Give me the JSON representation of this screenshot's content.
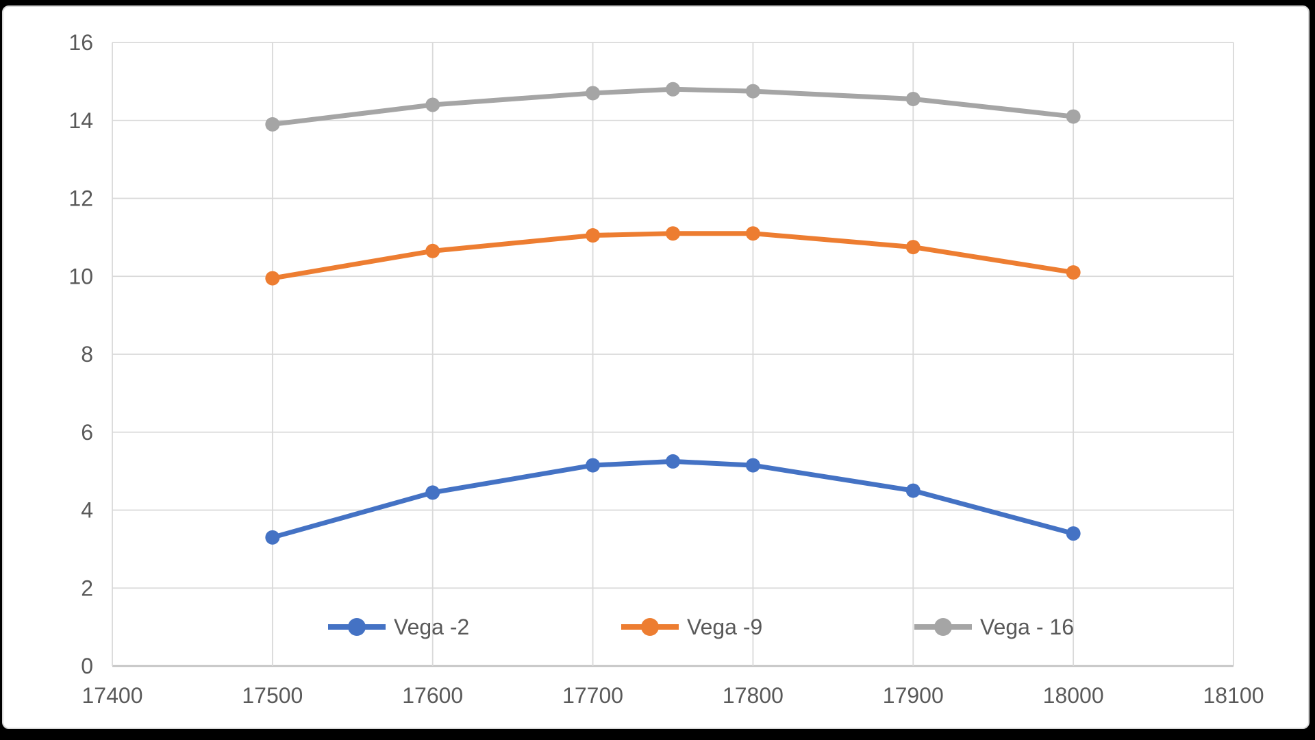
{
  "window": {
    "background_color": "#000000",
    "chart_background_color": "#FFFFFF",
    "chart_border_color": "#D9D9D9"
  },
  "chart_data": {
    "type": "line",
    "title": "",
    "x": [
      17500,
      17600,
      17700,
      17750,
      17800,
      17900,
      18000
    ],
    "series": [
      {
        "name": "Vega -2",
        "color": "#4472C4",
        "values": [
          3.3,
          4.45,
          5.15,
          5.25,
          5.15,
          4.5,
          3.4
        ]
      },
      {
        "name": "Vega -9",
        "color": "#ED7D31",
        "values": [
          9.95,
          10.65,
          11.05,
          11.1,
          11.1,
          10.75,
          10.1
        ]
      },
      {
        "name": "Vega - 16",
        "color": "#A5A5A5",
        "values": [
          13.9,
          14.4,
          14.7,
          14.8,
          14.75,
          14.55,
          14.1
        ]
      }
    ],
    "x_axis": {
      "min": 17400,
      "max": 18100,
      "tick_step": 100,
      "tick_labels": [
        "17400",
        "17500",
        "17600",
        "17700",
        "17800",
        "17900",
        "18000",
        "18100"
      ]
    },
    "y_axis": {
      "min": 0,
      "max": 16,
      "tick_step": 2,
      "tick_labels": [
        "0",
        "2",
        "4",
        "6",
        "8",
        "10",
        "12",
        "14",
        "16"
      ]
    },
    "grid": true,
    "legend": {
      "position": "bottom-inside",
      "entries": [
        "Vega -2",
        "Vega -9",
        "Vega - 16"
      ]
    },
    "styles": {
      "gridline_color": "#D9D9D9",
      "axis_line_color": "#BFBFBF",
      "label_color": "#595959",
      "line_width": 7,
      "marker_radius": 10.5
    }
  }
}
